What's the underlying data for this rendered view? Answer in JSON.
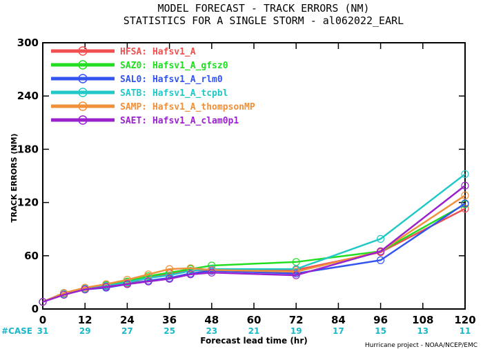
{
  "chart_data": {
    "type": "line",
    "title": "MODEL FORECAST - TRACK ERRORS (NM)",
    "subtitle": "STATISTICS FOR A SINGLE STORM - al062022_EARL",
    "xlabel": "Forecast lead time (hr)",
    "ylabel": "TRACK ERRORS (NM)",
    "xlim": [
      0,
      120
    ],
    "ylim": [
      0,
      300
    ],
    "x_ticks": [
      0,
      12,
      24,
      36,
      48,
      60,
      72,
      84,
      96,
      108,
      120
    ],
    "y_ticks": [
      0,
      60,
      120,
      180,
      240,
      300
    ],
    "y_tick_labels": [
      "0",
      "60",
      "120",
      "180",
      "240",
      "300"
    ],
    "x_tick_labels": [
      "0",
      "12",
      "24",
      "36",
      "48",
      "60",
      "72",
      "84",
      "96",
      "108",
      "120"
    ],
    "case_label": "#CASE",
    "case_counts": [
      "31",
      "29",
      "27",
      "25",
      "23",
      "21",
      "19",
      "17",
      "15",
      "13",
      "11"
    ],
    "credit": "Hurricane project - NOAA/NCEP/EMC",
    "grid": false,
    "legend_position": "top-left",
    "x": [
      0,
      6,
      12,
      18,
      24,
      30,
      36,
      42,
      48,
      72,
      96,
      120
    ],
    "series": [
      {
        "name": "HFSA: Hafsv1_A",
        "color": "#f05050",
        "values": [
          8,
          18,
          23,
          26,
          29,
          35,
          40,
          43,
          44,
          44,
          64,
          113
        ]
      },
      {
        "name": "SAZ0: Hafsv1_A_gfsz0",
        "color": "#22dd22",
        "values": [
          8,
          18,
          23,
          27,
          31,
          37,
          41,
          45,
          49,
          53,
          65,
          118
        ]
      },
      {
        "name": "SAL0: Hafsv1_A_rlm0",
        "color": "#3355ee",
        "values": [
          8,
          18,
          22,
          24,
          28,
          32,
          35,
          40,
          43,
          40,
          55,
          119
        ]
      },
      {
        "name": "SATB: Hafsv1_A_tcpbl",
        "color": "#22c8c8",
        "values": [
          8,
          17,
          23,
          26,
          30,
          35,
          38,
          43,
          45,
          45,
          79,
          152
        ]
      },
      {
        "name": "SAMP: Hafsv1_A_thompsonMP",
        "color": "#f0903a",
        "values": [
          8,
          18,
          24,
          28,
          33,
          39,
          45,
          46,
          44,
          42,
          65,
          128
        ]
      },
      {
        "name": "SAET: Hafsv1_A_clam0p1",
        "color": "#9a22cc",
        "values": [
          8,
          16,
          22,
          25,
          28,
          31,
          34,
          39,
          41,
          38,
          65,
          139
        ]
      }
    ]
  }
}
